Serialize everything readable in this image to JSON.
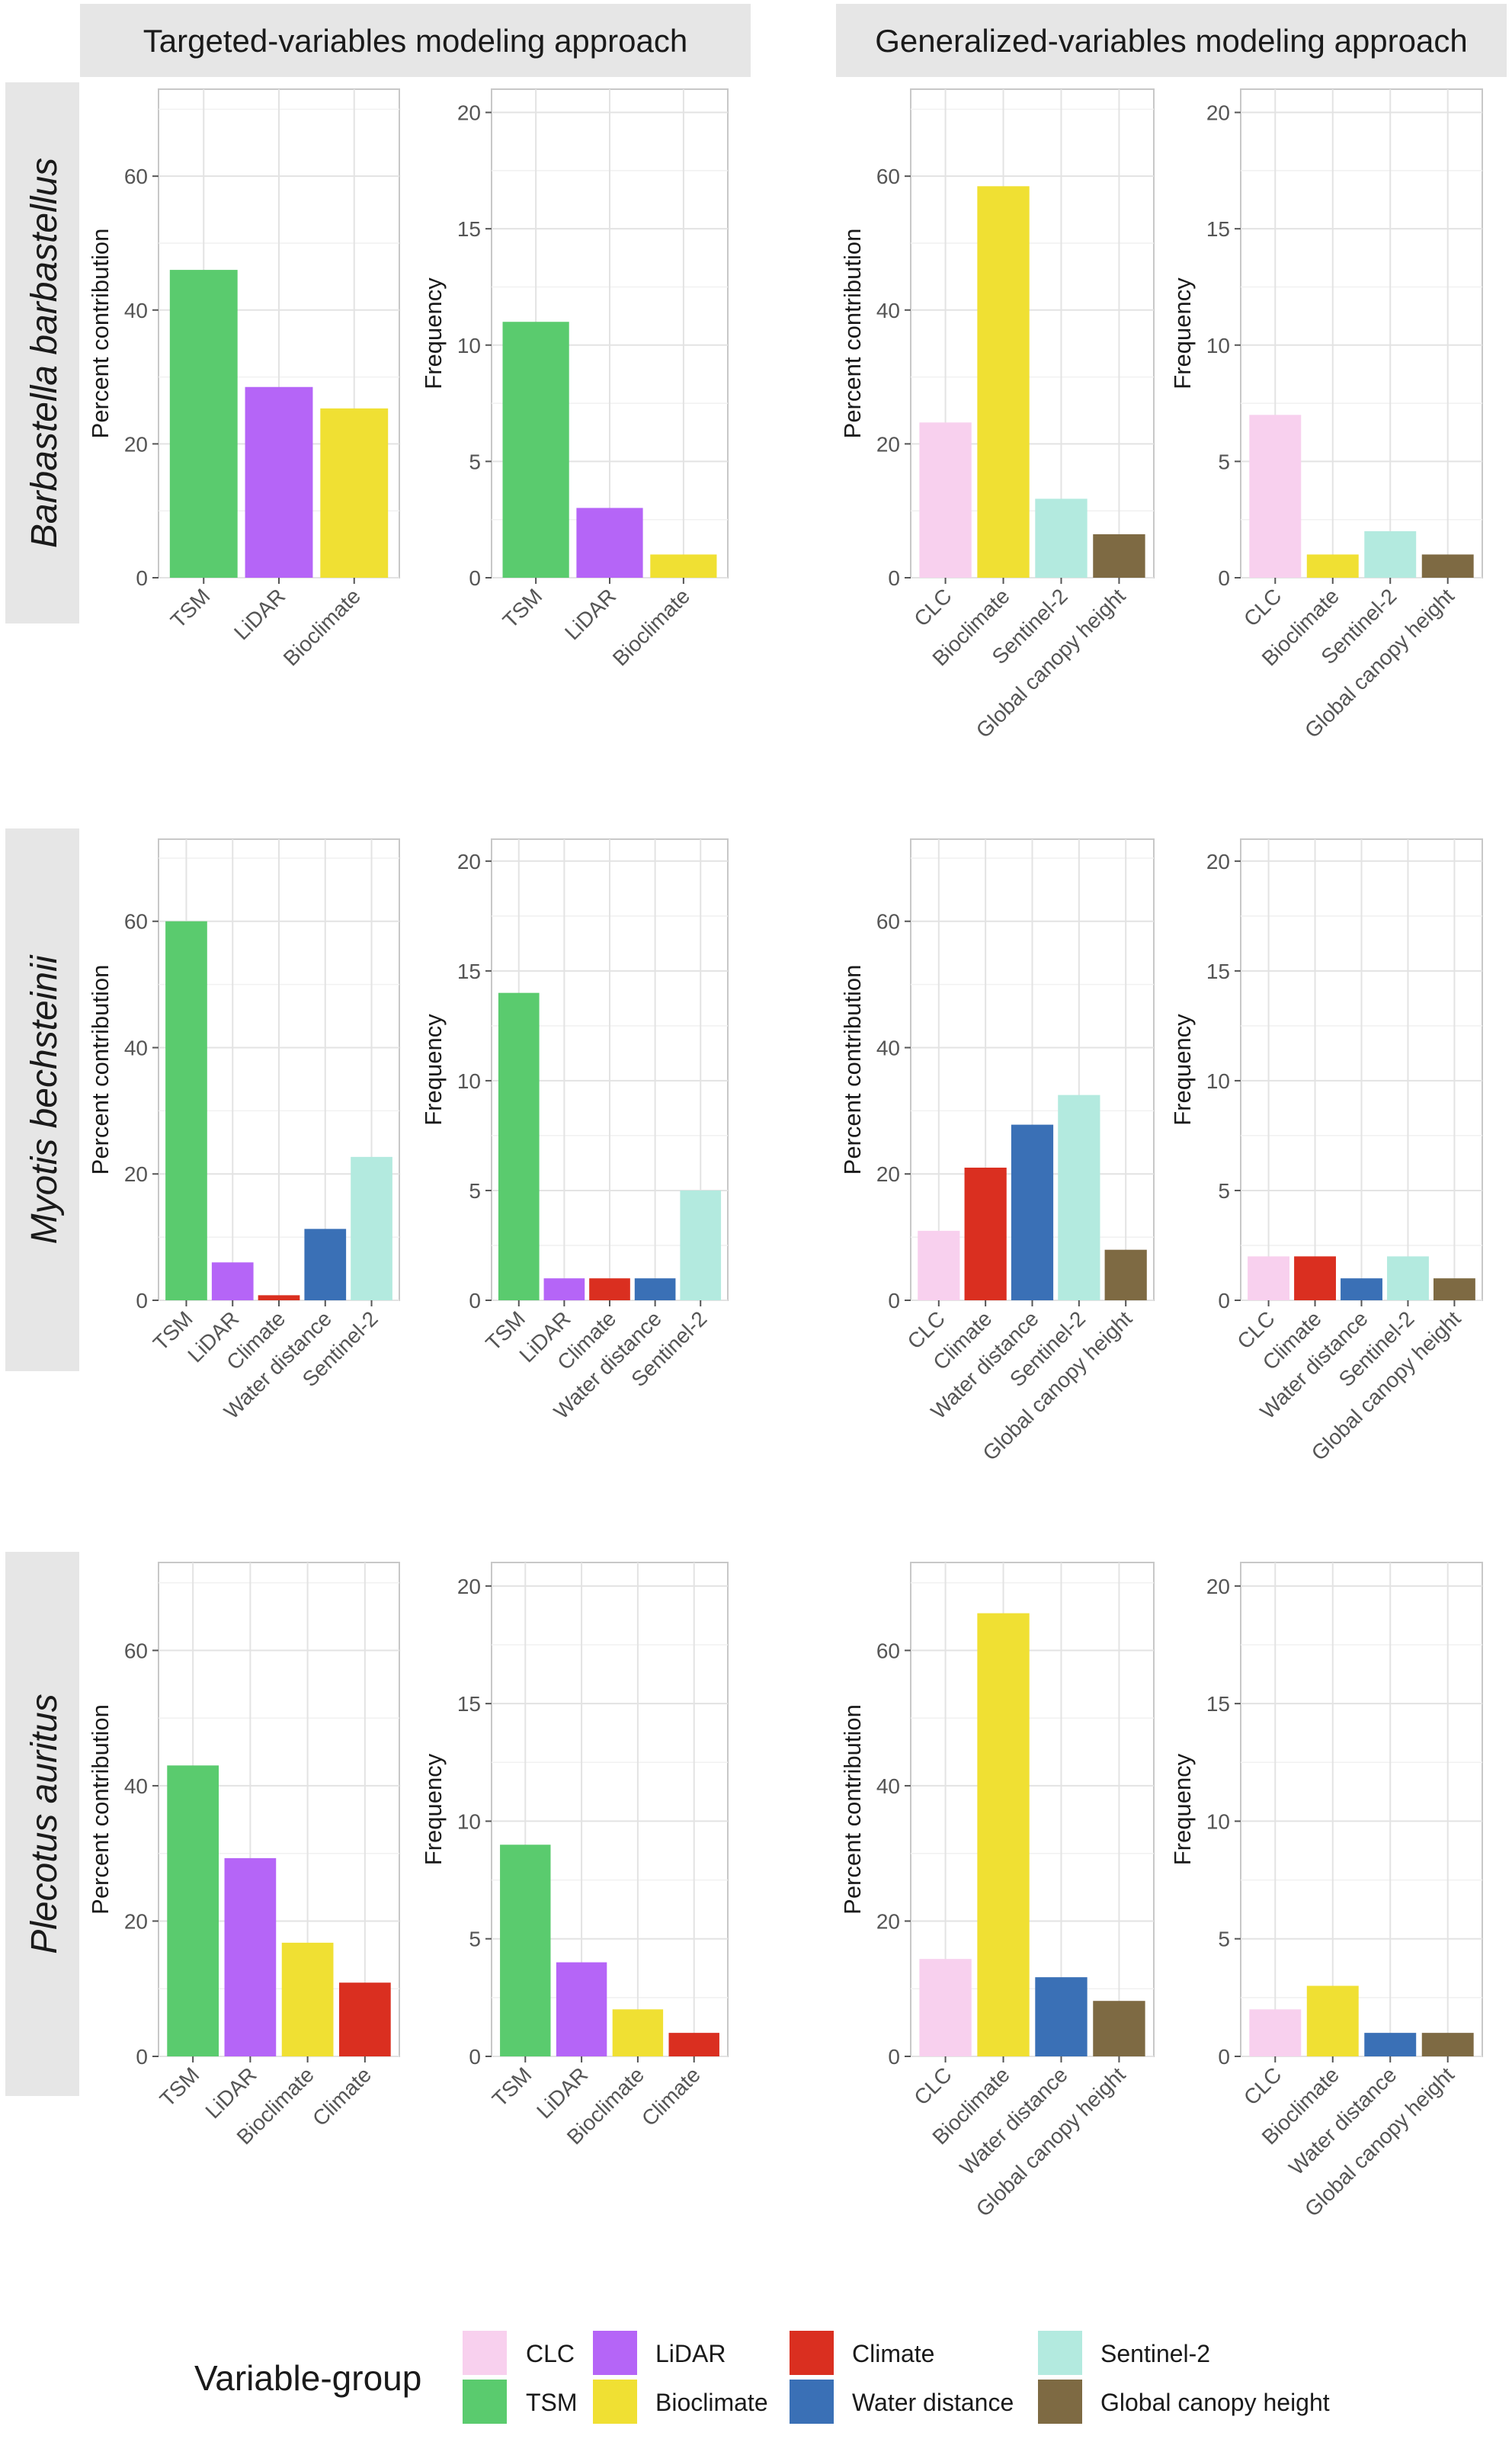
{
  "column_headers": {
    "targeted": "Targeted-variables modeling approach",
    "generalized": "Generalized-variables modeling approach"
  },
  "species": [
    "Barbastella barbastellus",
    "Myotis bechsteinii",
    "Plecotus auritus"
  ],
  "axis_labels": {
    "percent": "Percent contribution",
    "frequency": "Frequency"
  },
  "legend": {
    "title": "Variable-group",
    "items": [
      {
        "name": "CLC",
        "color": "#F8D0EE"
      },
      {
        "name": "TSM",
        "color": "#5ACB6E"
      },
      {
        "name": "LiDAR",
        "color": "#B565F7"
      },
      {
        "name": "Bioclimate",
        "color": "#F0E033"
      },
      {
        "name": "Climate",
        "color": "#DA2F20"
      },
      {
        "name": "Water distance",
        "color": "#3A70B6"
      },
      {
        "name": "Sentinel-2",
        "color": "#B3EADF"
      },
      {
        "name": "Global canopy height",
        "color": "#7E6A43"
      }
    ]
  },
  "chart_data": [
    {
      "type": "bar",
      "species": "Barbastella barbastellus",
      "approach": "Targeted-variables modeling approach",
      "ylabel": "Percent contribution",
      "ylim": [
        0,
        73
      ],
      "yticks": [
        0,
        20,
        40,
        60
      ],
      "categories": [
        "TSM",
        "LiDAR",
        "Bioclimate"
      ],
      "values": [
        46,
        28.5,
        25.3
      ]
    },
    {
      "type": "bar",
      "species": "Barbastella barbastellus",
      "approach": "Targeted-variables modeling approach",
      "ylabel": "Frequency",
      "ylim": [
        0,
        21
      ],
      "yticks": [
        0,
        5,
        10,
        15,
        20
      ],
      "categories": [
        "TSM",
        "LiDAR",
        "Bioclimate"
      ],
      "values": [
        11,
        3,
        1
      ]
    },
    {
      "type": "bar",
      "species": "Barbastella barbastellus",
      "approach": "Generalized-variables modeling approach",
      "ylabel": "Percent contribution",
      "ylim": [
        0,
        73
      ],
      "yticks": [
        0,
        20,
        40,
        60
      ],
      "categories": [
        "CLC",
        "Bioclimate",
        "Sentinel-2",
        "Global canopy height"
      ],
      "values": [
        23.2,
        58.5,
        11.8,
        6.5
      ]
    },
    {
      "type": "bar",
      "species": "Barbastella barbastellus",
      "approach": "Generalized-variables modeling approach",
      "ylabel": "Frequency",
      "ylim": [
        0,
        21
      ],
      "yticks": [
        0,
        5,
        10,
        15,
        20
      ],
      "categories": [
        "CLC",
        "Bioclimate",
        "Sentinel-2",
        "Global canopy height"
      ],
      "values": [
        7,
        1,
        2,
        1
      ]
    },
    {
      "type": "bar",
      "species": "Myotis bechsteinii",
      "approach": "Targeted-variables modeling approach",
      "ylabel": "Percent contribution",
      "ylim": [
        0,
        73
      ],
      "yticks": [
        0,
        20,
        40,
        60
      ],
      "categories": [
        "TSM",
        "LiDAR",
        "Climate",
        "Water distance",
        "Sentinel-2"
      ],
      "values": [
        60,
        6,
        0.8,
        11.3,
        22.7
      ]
    },
    {
      "type": "bar",
      "species": "Myotis bechsteinii",
      "approach": "Targeted-variables modeling approach",
      "ylabel": "Frequency",
      "ylim": [
        0,
        21
      ],
      "yticks": [
        0,
        5,
        10,
        15,
        20
      ],
      "categories": [
        "TSM",
        "LiDAR",
        "Climate",
        "Water distance",
        "Sentinel-2"
      ],
      "values": [
        14,
        1,
        1,
        1,
        5
      ]
    },
    {
      "type": "bar",
      "species": "Myotis bechsteinii",
      "approach": "Generalized-variables modeling approach",
      "ylabel": "Percent contribution",
      "ylim": [
        0,
        73
      ],
      "yticks": [
        0,
        20,
        40,
        60
      ],
      "categories": [
        "CLC",
        "Climate",
        "Water distance",
        "Sentinel-2",
        "Global canopy height"
      ],
      "values": [
        11,
        21,
        27.8,
        32.5,
        8
      ]
    },
    {
      "type": "bar",
      "species": "Myotis bechsteinii",
      "approach": "Generalized-variables modeling approach",
      "ylabel": "Frequency",
      "ylim": [
        0,
        21
      ],
      "yticks": [
        0,
        5,
        10,
        15,
        20
      ],
      "categories": [
        "CLC",
        "Climate",
        "Water distance",
        "Sentinel-2",
        "Global canopy height"
      ],
      "values": [
        2,
        2,
        1,
        2,
        1
      ]
    },
    {
      "type": "bar",
      "species": "Plecotus auritus",
      "approach": "Targeted-variables modeling approach",
      "ylabel": "Percent contribution",
      "ylim": [
        0,
        73
      ],
      "yticks": [
        0,
        20,
        40,
        60
      ],
      "categories": [
        "TSM",
        "LiDAR",
        "Bioclimate",
        "Climate"
      ],
      "values": [
        43,
        29.3,
        16.8,
        10.9
      ]
    },
    {
      "type": "bar",
      "species": "Plecotus auritus",
      "approach": "Targeted-variables modeling approach",
      "ylabel": "Frequency",
      "ylim": [
        0,
        21
      ],
      "yticks": [
        0,
        5,
        10,
        15,
        20
      ],
      "categories": [
        "TSM",
        "LiDAR",
        "Bioclimate",
        "Climate"
      ],
      "values": [
        9,
        4,
        2,
        1
      ]
    },
    {
      "type": "bar",
      "species": "Plecotus auritus",
      "approach": "Generalized-variables modeling approach",
      "ylabel": "Percent contribution",
      "ylim": [
        0,
        73
      ],
      "yticks": [
        0,
        20,
        40,
        60
      ],
      "categories": [
        "CLC",
        "Bioclimate",
        "Water distance",
        "Global canopy height"
      ],
      "values": [
        14.4,
        65.5,
        11.7,
        8.2
      ]
    },
    {
      "type": "bar",
      "species": "Plecotus auritus",
      "approach": "Generalized-variables modeling approach",
      "ylabel": "Frequency",
      "ylim": [
        0,
        21
      ],
      "yticks": [
        0,
        5,
        10,
        15,
        20
      ],
      "categories": [
        "CLC",
        "Bioclimate",
        "Water distance",
        "Global canopy height"
      ],
      "values": [
        2,
        3,
        1,
        1
      ]
    }
  ]
}
